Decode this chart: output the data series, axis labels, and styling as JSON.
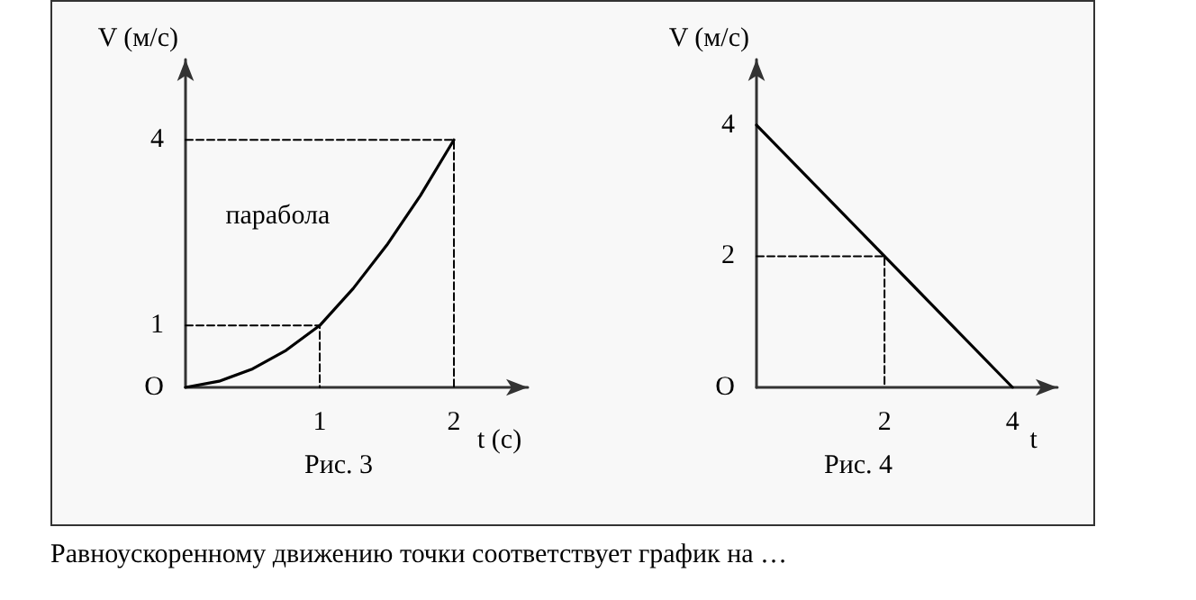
{
  "chart_data": [
    {
      "type": "line",
      "title": "Рис. 3",
      "xlabel": "t (с)",
      "ylabel": "V (м/с)",
      "xlim": [
        0,
        2.55
      ],
      "ylim": [
        0,
        5.3
      ],
      "xticks": [
        1,
        2
      ],
      "yticks": [
        {
          "value": 0,
          "label": "O"
        },
        1,
        4
      ],
      "grid": false,
      "legend": false,
      "marker": "none",
      "series": [
        {
          "name": "парабола",
          "color": "#000000",
          "x": [
            0,
            0.25,
            0.5,
            0.75,
            1,
            1.25,
            1.5,
            1.75,
            2
          ],
          "values": [
            0,
            0.1,
            0.3,
            0.6,
            1,
            1.6,
            2.3,
            3.1,
            4
          ]
        },
        {
          "color": "#000000",
          "line_style": "dashed",
          "x": [
            0,
            1,
            1
          ],
          "values": [
            1,
            1,
            0
          ]
        },
        {
          "color": "#000000",
          "line_style": "dashed",
          "x": [
            0,
            2,
            2
          ],
          "values": [
            4,
            4,
            0
          ]
        }
      ]
    },
    {
      "type": "line",
      "title": "Рис. 4",
      "xlabel": "t",
      "ylabel": "V (м/с)",
      "xlim": [
        0,
        4.7
      ],
      "ylim": [
        0,
        5
      ],
      "xticks": [
        2,
        4
      ],
      "yticks": [
        {
          "value": 0,
          "label": "O"
        },
        2,
        4
      ],
      "grid": false,
      "legend": false,
      "marker": "none",
      "series": [
        {
          "color": "#000000",
          "x": [
            0,
            4
          ],
          "values": [
            4,
            0
          ]
        },
        {
          "color": "#000000",
          "line_style": "dashed",
          "x": [
            0,
            2,
            2
          ],
          "values": [
            2,
            2,
            0
          ]
        }
      ]
    },
    {
      "type": "other",
      "annotations": [
        "Равноускоренному движению точки соответствует график на …"
      ]
    }
  ]
}
